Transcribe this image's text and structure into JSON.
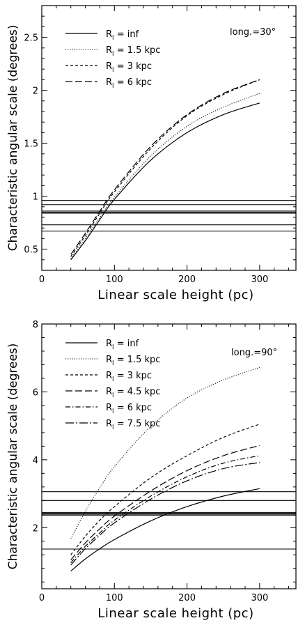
{
  "chart_data": [
    {
      "type": "line",
      "xlabel": "Linear scale height (pc)",
      "ylabel": "Characteristic angular scale (degrees)",
      "xlim": [
        0,
        350
      ],
      "ylim": [
        0.3,
        2.8
      ],
      "xticks": [
        0,
        100,
        200,
        300
      ],
      "yticks": [
        0.5,
        1,
        1.5,
        2,
        2.5
      ],
      "annotation": "long.=30°",
      "legend_position": "top-left",
      "series": [
        {
          "name": "R_l = inf",
          "legend_main": "R",
          "legend_sub": "l",
          "legend_rest": " = inf",
          "dash": "solid",
          "x": [
            40,
            60,
            80,
            100,
            150,
            200,
            250,
            300
          ],
          "y": [
            0.4,
            0.58,
            0.78,
            0.97,
            1.34,
            1.6,
            1.77,
            1.88
          ]
        },
        {
          "name": "R_l = 1.5 kpc",
          "legend_main": "R",
          "legend_sub": "l",
          "legend_rest": " = 1.5 kpc",
          "dash": "dotted",
          "x": [
            40,
            60,
            80,
            100,
            150,
            200,
            250,
            300
          ],
          "y": [
            0.41,
            0.6,
            0.8,
            0.99,
            1.38,
            1.66,
            1.84,
            1.97
          ]
        },
        {
          "name": "R_l = 3 kpc",
          "legend_main": "R",
          "legend_sub": "l",
          "legend_rest": " = 3 kpc",
          "dash": "short-dash",
          "x": [
            40,
            60,
            80,
            100,
            150,
            200,
            250,
            300
          ],
          "y": [
            0.43,
            0.63,
            0.84,
            1.04,
            1.45,
            1.76,
            1.96,
            2.1
          ]
        },
        {
          "name": "R_l = 6 kpc",
          "legend_main": "R",
          "legend_sub": "l",
          "legend_rest": " = 6 kpc",
          "dash": "long-dash",
          "x": [
            40,
            60,
            80,
            100,
            150,
            200,
            250,
            300
          ],
          "y": [
            0.45,
            0.65,
            0.86,
            1.06,
            1.47,
            1.77,
            1.97,
            2.1
          ]
        }
      ],
      "hlines": [
        0.96,
        0.92,
        0.86,
        0.85,
        0.84,
        0.73,
        0.67
      ]
    },
    {
      "type": "line",
      "xlabel": "Linear scale height (pc)",
      "ylabel": "Characteristic angular scale (degrees)",
      "xlim": [
        0,
        350
      ],
      "ylim": [
        0.2,
        8
      ],
      "xticks": [
        0,
        100,
        200,
        300
      ],
      "yticks": [
        2,
        4,
        6,
        8
      ],
      "annotation": "long.=90°",
      "legend_position": "top-left",
      "series": [
        {
          "name": "R_l = inf",
          "legend_main": "R",
          "legend_sub": "l",
          "legend_rest": " = inf",
          "dash": "solid",
          "x": [
            40,
            60,
            80,
            100,
            150,
            200,
            250,
            300
          ],
          "y": [
            0.72,
            1.08,
            1.38,
            1.65,
            2.2,
            2.62,
            2.93,
            3.15
          ]
        },
        {
          "name": "R_l = 1.5 kpc",
          "legend_main": "R",
          "legend_sub": "l",
          "legend_rest": " = 1.5 kpc",
          "dash": "dotted",
          "x": [
            40,
            60,
            80,
            100,
            150,
            200,
            250,
            300
          ],
          "y": [
            1.68,
            2.48,
            3.18,
            3.8,
            4.98,
            5.82,
            6.35,
            6.72
          ]
        },
        {
          "name": "R_l = 3 kpc",
          "legend_main": "R",
          "legend_sub": "l",
          "legend_rest": " = 3 kpc",
          "dash": "short-dash",
          "x": [
            40,
            60,
            80,
            100,
            150,
            200,
            250,
            300
          ],
          "y": [
            1.2,
            1.75,
            2.22,
            2.62,
            3.47,
            4.12,
            4.66,
            5.05
          ]
        },
        {
          "name": "R_l = 4.5 kpc",
          "legend_main": "R",
          "legend_sub": "l",
          "legend_rest": " = 4.5 kpc",
          "dash": "long-dash",
          "x": [
            40,
            60,
            80,
            100,
            150,
            200,
            250,
            300
          ],
          "y": [
            1.05,
            1.55,
            1.97,
            2.34,
            3.08,
            3.68,
            4.12,
            4.42
          ]
        },
        {
          "name": "R_l = 6 kpc",
          "legend_main": "R",
          "legend_sub": "l",
          "legend_rest": " = 6 kpc",
          "dash": "dash-dot",
          "x": [
            40,
            60,
            80,
            100,
            150,
            200,
            250,
            300
          ],
          "y": [
            0.97,
            1.45,
            1.85,
            2.22,
            2.93,
            3.5,
            3.9,
            4.12
          ]
        },
        {
          "name": "R_l = 7.5 kpc",
          "legend_main": "R",
          "legend_sub": "l",
          "legend_rest": " = 7.5 kpc",
          "dash": "long-dash-dot",
          "x": [
            40,
            60,
            80,
            100,
            150,
            200,
            250,
            300
          ],
          "y": [
            0.9,
            1.38,
            1.78,
            2.14,
            2.84,
            3.38,
            3.74,
            3.92
          ]
        }
      ],
      "hlines": [
        3.06,
        2.8,
        2.45,
        2.42,
        2.4,
        2.37,
        1.37
      ]
    }
  ]
}
